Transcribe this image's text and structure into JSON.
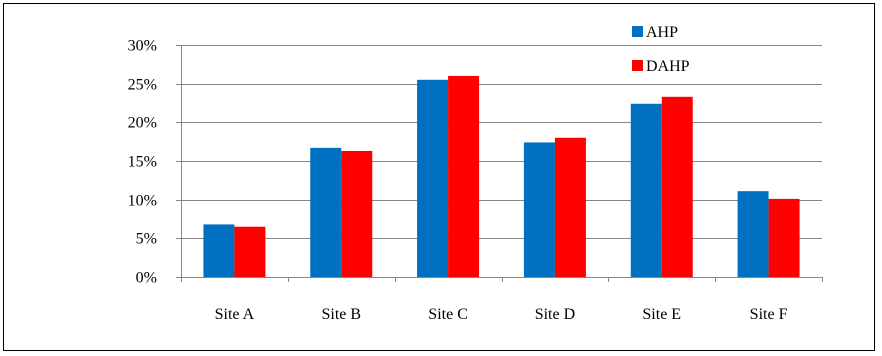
{
  "chart_data": {
    "type": "bar",
    "title": "",
    "xlabel": "",
    "ylabel": "",
    "categories": [
      "Site A",
      "Site B",
      "Site C",
      "Site D",
      "Site E",
      "Site F"
    ],
    "series": [
      {
        "name": "AHP",
        "color": "#0070C0",
        "values": [
          6.8,
          16.7,
          25.5,
          17.4,
          22.4,
          11.1
        ]
      },
      {
        "name": "DAHP",
        "color": "#FF0000",
        "values": [
          6.5,
          16.3,
          26.0,
          18.0,
          23.3,
          10.1
        ]
      }
    ],
    "ylim": [
      0,
      30
    ],
    "yticks": [
      0,
      5,
      10,
      15,
      20,
      25,
      30
    ],
    "ytick_labels": [
      "0%",
      "5%",
      "10%",
      "15%",
      "20%",
      "25%",
      "30%"
    ],
    "grid": true,
    "legend_position": "top-right"
  }
}
